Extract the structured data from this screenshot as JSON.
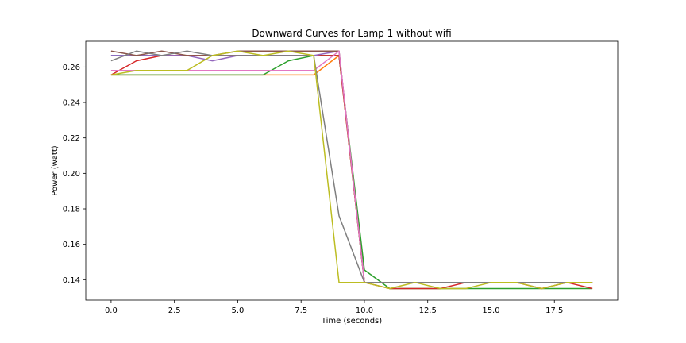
{
  "chart_data": {
    "type": "line",
    "title": "Downward Curves for Lamp 1 without wifi",
    "xlabel": "Time (seconds)",
    "ylabel": "Power (watt)",
    "xlim": [
      -1.0,
      20.0
    ],
    "ylim": [
      0.1285,
      0.2745
    ],
    "grid": false,
    "legend": "none",
    "x_ticks": [
      0.0,
      2.5,
      5.0,
      7.5,
      10.0,
      12.5,
      15.0,
      17.5
    ],
    "x_tick_labels": [
      "0.0",
      "2.5",
      "5.0",
      "7.5",
      "10.0",
      "12.5",
      "15.0",
      "17.5"
    ],
    "y_ticks": [
      0.14,
      0.16,
      0.18,
      0.2,
      0.22,
      0.24,
      0.26
    ],
    "y_tick_labels": [
      "0.14",
      "0.16",
      "0.18",
      "0.20",
      "0.22",
      "0.24",
      "0.26"
    ],
    "x": [
      0,
      1,
      2,
      3,
      4,
      5,
      6,
      7,
      8,
      9,
      10,
      11,
      12,
      13,
      14,
      15,
      16,
      17,
      18,
      19
    ],
    "series": [
      {
        "color": "#1f77b4",
        "values": [
          0.2665,
          0.2665,
          0.2665,
          0.2665,
          0.2665,
          0.2665,
          0.2665,
          0.2665,
          0.2665,
          0.2665,
          0.1385,
          0.1385,
          0.1385,
          0.1385,
          0.1385,
          0.1385,
          0.1385,
          0.1385,
          0.1385,
          0.1385
        ]
      },
      {
        "color": "#ff7f0e",
        "values": [
          0.2555,
          0.2555,
          0.2555,
          0.2555,
          0.2555,
          0.2555,
          0.2555,
          0.2555,
          0.2555,
          0.2665,
          0.1385,
          0.1385,
          0.1385,
          0.1385,
          0.1385,
          0.1385,
          0.1385,
          0.1385,
          0.1385,
          0.1385
        ]
      },
      {
        "color": "#2ca02c",
        "values": [
          0.2555,
          0.2555,
          0.2555,
          0.2555,
          0.2555,
          0.2555,
          0.2555,
          0.2635,
          0.2665,
          0.2665,
          0.1455,
          0.135,
          0.135,
          0.135,
          0.135,
          0.135,
          0.135,
          0.135,
          0.135,
          0.135
        ]
      },
      {
        "color": "#d62728",
        "values": [
          0.2555,
          0.2635,
          0.2665,
          0.2665,
          0.2665,
          0.2665,
          0.2665,
          0.2665,
          0.2665,
          0.2665,
          0.1385,
          0.135,
          0.135,
          0.135,
          0.1385,
          0.1385,
          0.1385,
          0.135,
          0.1385,
          0.135
        ]
      },
      {
        "color": "#9467bd",
        "values": [
          0.2665,
          0.2665,
          0.2665,
          0.2665,
          0.2635,
          0.2665,
          0.2665,
          0.2665,
          0.2665,
          0.269,
          0.1385,
          0.1385,
          0.1385,
          0.1385,
          0.1385,
          0.1385,
          0.1385,
          0.1385,
          0.1385,
          0.1385
        ]
      },
      {
        "color": "#8c564b",
        "values": [
          0.269,
          0.2665,
          0.269,
          0.2665,
          0.2665,
          0.269,
          0.269,
          0.269,
          0.269,
          0.269,
          0.1385,
          0.1385,
          0.1385,
          0.1385,
          0.1385,
          0.1385,
          0.1385,
          0.1385,
          0.1385,
          0.1385
        ]
      },
      {
        "color": "#e377c2",
        "values": [
          0.258,
          0.258,
          0.258,
          0.258,
          0.258,
          0.258,
          0.258,
          0.258,
          0.258,
          0.269,
          0.1385,
          0.1385,
          0.1385,
          0.1385,
          0.1385,
          0.1385,
          0.1385,
          0.1385,
          0.1385,
          0.1385
        ]
      },
      {
        "color": "#7f7f7f",
        "values": [
          0.2635,
          0.269,
          0.2665,
          0.269,
          0.2665,
          0.2665,
          0.2665,
          0.2665,
          0.2665,
          0.176,
          0.1385,
          0.1385,
          0.1385,
          0.1385,
          0.1385,
          0.1385,
          0.1385,
          0.1385,
          0.1385,
          0.1385
        ]
      },
      {
        "color": "#bcbd22",
        "values": [
          0.2555,
          0.258,
          0.258,
          0.258,
          0.2665,
          0.269,
          0.2665,
          0.269,
          0.2665,
          0.1385,
          0.1385,
          0.135,
          0.1385,
          0.135,
          0.135,
          0.1385,
          0.1385,
          0.135,
          0.1385,
          0.1385
        ]
      }
    ]
  }
}
